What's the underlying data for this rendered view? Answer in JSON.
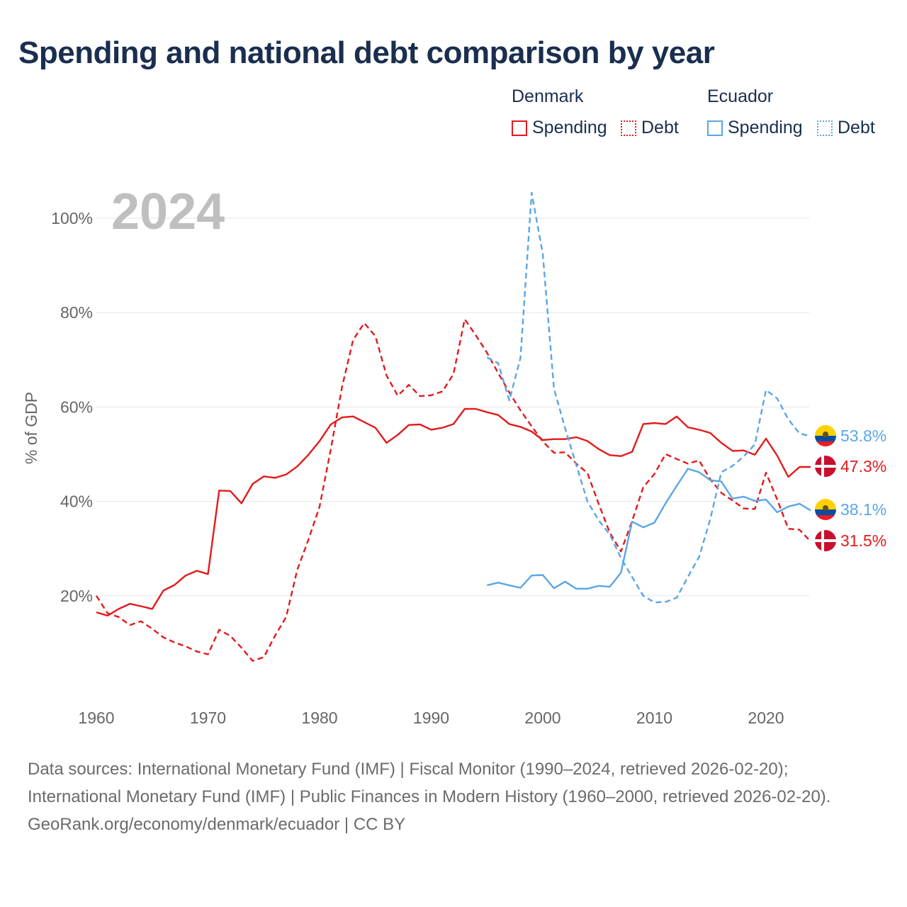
{
  "title": "Spending and national debt comparison by year",
  "legend": {
    "groups": [
      {
        "name": "Denmark",
        "items": [
          "Spending",
          "Debt"
        ]
      },
      {
        "name": "Ecuador",
        "items": [
          "Spending",
          "Debt"
        ]
      }
    ]
  },
  "year_watermark": "2024",
  "colors": {
    "denmark": "#e31a1c",
    "ecuador": "#5aa6e6",
    "title": "#1a2e4f",
    "axis_text": "#666666",
    "grid": "#e6e6e6",
    "watermark": "#bfbfbf"
  },
  "footer": {
    "sources": "Data sources: International Monetary Fund (IMF) | Fiscal Monitor (1990–2024, retrieved 2026-02-20); International Monetary Fund (IMF) | Public Finances in Modern History (1960–2000, retrieved 2026-02-20).",
    "credit": "GeoRank.org/economy/denmark/ecuador | CC BY"
  },
  "chart_data": {
    "type": "line",
    "title": "Spending and national debt comparison by year",
    "xlabel": "",
    "ylabel": "% of GDP",
    "xlim": [
      1960,
      2024
    ],
    "ylim": [
      0,
      105
    ],
    "x_ticks": [
      1960,
      1970,
      1980,
      1990,
      2000,
      2010,
      2020
    ],
    "y_ticks": [
      20,
      40,
      60,
      80,
      100
    ],
    "y_tick_labels": [
      "20%",
      "40%",
      "60%",
      "80%",
      "100%"
    ],
    "grid": true,
    "series": [
      {
        "name": "Denmark Spending",
        "country": "Denmark",
        "metric": "Spending",
        "style": "solid",
        "color": "#e31a1c",
        "x": [
          1960,
          1961,
          1962,
          1963,
          1964,
          1965,
          1966,
          1967,
          1968,
          1969,
          1970,
          1971,
          1972,
          1973,
          1974,
          1975,
          1976,
          1977,
          1978,
          1979,
          1980,
          1981,
          1982,
          1983,
          1984,
          1985,
          1986,
          1987,
          1988,
          1989,
          1990,
          1991,
          1992,
          1993,
          1994,
          1995,
          1996,
          1997,
          1998,
          1999,
          2000,
          2001,
          2002,
          2003,
          2004,
          2005,
          2006,
          2007,
          2008,
          2009,
          2010,
          2011,
          2012,
          2013,
          2014,
          2015,
          2016,
          2017,
          2018,
          2019,
          2020,
          2021,
          2022,
          2023,
          2024
        ],
        "y": [
          16.5,
          15.8,
          17.2,
          18.3,
          17.8,
          17.2,
          21.1,
          22.3,
          24.3,
          25.3,
          24.6,
          42.3,
          42.2,
          39.6,
          43.7,
          45.3,
          45.0,
          45.7,
          47.4,
          49.9,
          52.8,
          56.3,
          57.8,
          58.0,
          56.8,
          55.6,
          52.4,
          54.1,
          56.2,
          56.3,
          55.2,
          55.6,
          56.4,
          59.6,
          59.6,
          58.9,
          58.3,
          56.4,
          55.8,
          54.8,
          53.0,
          53.2,
          53.2,
          53.6,
          52.8,
          51.1,
          49.8,
          49.6,
          50.5,
          56.4,
          56.6,
          56.4,
          58.0,
          55.7,
          55.2,
          54.5,
          52.4,
          50.7,
          50.8,
          49.9,
          53.3,
          49.7,
          45.2,
          47.3,
          47.3
        ],
        "end_label": "47.3%"
      },
      {
        "name": "Denmark Debt",
        "country": "Denmark",
        "metric": "Debt",
        "style": "dashed",
        "color": "#e31a1c",
        "x": [
          1960,
          1961,
          1962,
          1963,
          1964,
          1965,
          1966,
          1967,
          1968,
          1969,
          1970,
          1971,
          1972,
          1973,
          1974,
          1975,
          1976,
          1977,
          1978,
          1979,
          1980,
          1981,
          1982,
          1983,
          1984,
          1985,
          1986,
          1987,
          1988,
          1989,
          1990,
          1991,
          1992,
          1993,
          1994,
          1995,
          1996,
          1997,
          1998,
          1999,
          2000,
          2001,
          2002,
          2003,
          2004,
          2005,
          2006,
          2007,
          2008,
          2009,
          2010,
          2011,
          2012,
          2013,
          2014,
          2015,
          2016,
          2017,
          2018,
          2019,
          2020,
          2021,
          2022,
          2023,
          2024
        ],
        "y": [
          20.0,
          16.3,
          15.5,
          13.8,
          14.6,
          13.0,
          11.2,
          10.1,
          9.3,
          8.2,
          7.6,
          12.8,
          11.5,
          9.0,
          6.2,
          7.0,
          11.5,
          15.5,
          25.5,
          31.9,
          38.9,
          51.0,
          64.1,
          74.2,
          77.8,
          75.0,
          66.7,
          62.4,
          64.7,
          62.3,
          62.5,
          63.3,
          67.0,
          78.6,
          75.2,
          71.5,
          67.2,
          63.1,
          59.3,
          55.9,
          52.7,
          50.3,
          50.4,
          48.0,
          46.0,
          39.5,
          33.4,
          29.4,
          35.8,
          43.0,
          45.8,
          50.0,
          49.0,
          48.0,
          48.7,
          44.7,
          41.8,
          40.2,
          38.5,
          38.4,
          46.1,
          40.4,
          34.2,
          34.0,
          31.5
        ],
        "end_label": "31.5%"
      },
      {
        "name": "Ecuador Spending",
        "country": "Ecuador",
        "metric": "Spending",
        "style": "solid",
        "color": "#5aa6e6",
        "x": [
          1995,
          1996,
          1997,
          1998,
          1999,
          2000,
          2001,
          2002,
          2003,
          2004,
          2005,
          2006,
          2007,
          2008,
          2009,
          2010,
          2011,
          2012,
          2013,
          2014,
          2015,
          2016,
          2017,
          2018,
          2019,
          2020,
          2021,
          2022,
          2023,
          2024
        ],
        "y": [
          22.2,
          22.8,
          22.2,
          21.7,
          24.3,
          24.4,
          21.6,
          23.0,
          21.5,
          21.5,
          22.1,
          21.9,
          24.9,
          35.7,
          34.5,
          35.5,
          39.6,
          43.3,
          46.9,
          46.2,
          44.5,
          44.2,
          40.6,
          41.0,
          40.1,
          40.4,
          37.7,
          38.9,
          39.5,
          38.1
        ],
        "end_label": "38.1%"
      },
      {
        "name": "Ecuador Debt",
        "country": "Ecuador",
        "metric": "Debt",
        "style": "dashed",
        "color": "#5aa6e6",
        "x": [
          1995,
          1996,
          1997,
          1998,
          1999,
          2000,
          2001,
          2002,
          2003,
          2004,
          2005,
          2006,
          2007,
          2008,
          2009,
          2010,
          2011,
          2012,
          2013,
          2014,
          2015,
          2016,
          2017,
          2018,
          2019,
          2020,
          2021,
          2022,
          2023,
          2024
        ],
        "y": [
          70.5,
          69.3,
          61.4,
          70.4,
          105.4,
          92.4,
          63.9,
          55.5,
          47.7,
          40.0,
          36.0,
          33.0,
          28.0,
          24.0,
          20.0,
          18.6,
          18.7,
          19.6,
          24.0,
          28.2,
          36.2,
          46.2,
          47.5,
          49.5,
          52.1,
          63.6,
          61.8,
          57.4,
          54.4,
          53.8
        ],
        "end_label": "53.8%"
      }
    ]
  }
}
